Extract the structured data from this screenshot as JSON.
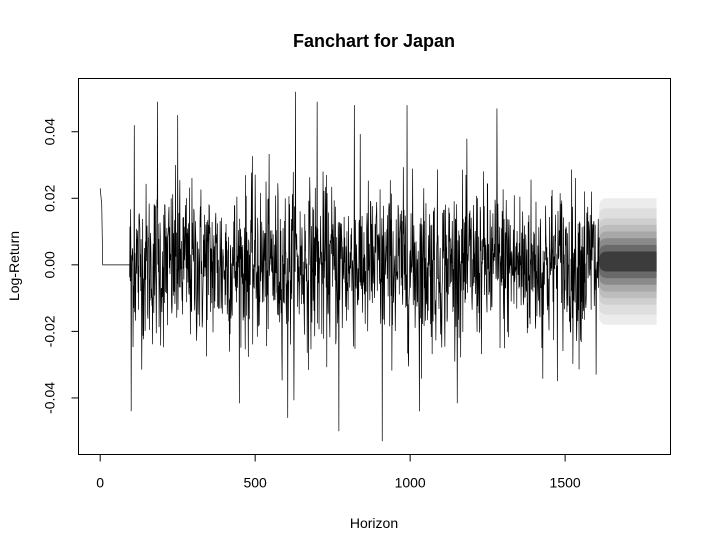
{
  "chart_data": {
    "type": "line",
    "title": "Fanchart for Japan",
    "xlabel": "Horizon",
    "ylabel": "Log-Return",
    "xlim": [
      -70,
      1840
    ],
    "ylim": [
      -0.057,
      0.056
    ],
    "x_ticks": [
      0,
      500,
      1000,
      1500
    ],
    "x_tick_labels": [
      "0",
      "500",
      "1000",
      "1500"
    ],
    "y_ticks": [
      -0.04,
      -0.02,
      0.0,
      0.02,
      0.04
    ],
    "y_tick_labels": [
      "-0.04",
      "-0.02",
      "0.00",
      "0.02",
      "0.04"
    ],
    "grid": false,
    "series": [
      {
        "color": "#000000",
        "history_end": 1610,
        "segments": [
          {
            "x": [
              0,
              5,
              8,
              95
            ],
            "y": [
              0.023,
              0.018,
              0.0,
              0.0
            ]
          }
        ],
        "noise_region": {
          "x_start": 95,
          "x_end": 1610,
          "typical_abs": 0.012,
          "max_abs": 0.052
        },
        "notable_spikes": [
          {
            "x": 100,
            "y": -0.044
          },
          {
            "x": 110,
            "y": 0.042
          },
          {
            "x": 185,
            "y": 0.049
          },
          {
            "x": 250,
            "y": 0.045
          },
          {
            "x": 605,
            "y": -0.046
          },
          {
            "x": 630,
            "y": 0.052
          },
          {
            "x": 700,
            "y": 0.049
          },
          {
            "x": 770,
            "y": -0.05
          },
          {
            "x": 820,
            "y": 0.048
          },
          {
            "x": 910,
            "y": -0.053
          },
          {
            "x": 990,
            "y": 0.048
          },
          {
            "x": 1030,
            "y": -0.044
          },
          {
            "x": 1280,
            "y": 0.047
          },
          {
            "x": 1425,
            "y": -0.025
          },
          {
            "x": 1585,
            "y": 0.022
          },
          {
            "x": 1600,
            "y": -0.033
          }
        ]
      }
    ],
    "fan": {
      "x_start": 1610,
      "x_end": 1795,
      "center": 0.001,
      "levels": [
        0.019,
        0.016,
        0.013,
        0.011,
        0.009,
        0.007,
        0.005,
        0.003
      ],
      "colors": [
        "#ececec",
        "#dedede",
        "#cfcfcf",
        "#bdbdbd",
        "#a8a8a8",
        "#8a8a8a",
        "#6a6a6a",
        "#3c3c3c"
      ]
    }
  }
}
